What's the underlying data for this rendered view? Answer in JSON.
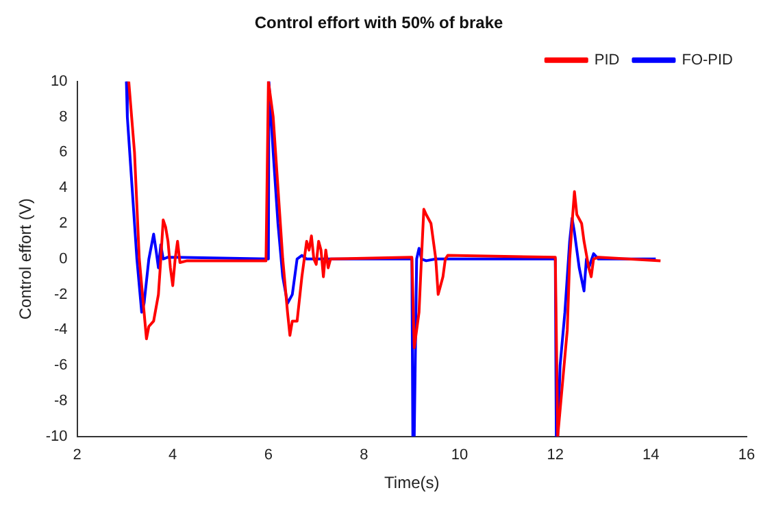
{
  "chart_data": {
    "type": "line",
    "title": "Control effort with 50% of brake",
    "xlabel": "Time(s)",
    "ylabel": "Control effort (V)",
    "xlim": [
      2,
      16
    ],
    "xticks": [
      2,
      4,
      6,
      8,
      10,
      12,
      14,
      16
    ],
    "ylim": [
      -10,
      10
    ],
    "yticks": [
      -10,
      -8,
      -6,
      -4,
      -2,
      0,
      2,
      4,
      6,
      8,
      10
    ],
    "grid": false,
    "legend": "top right",
    "marker": "none",
    "line_style": "solid",
    "series": [
      {
        "name": "PID",
        "color": "#ff0000",
        "x": [
          3.08,
          3.2,
          3.3,
          3.4,
          3.45,
          3.5,
          3.6,
          3.7,
          3.75,
          3.8,
          3.85,
          3.9,
          3.95,
          4.0,
          4.05,
          4.1,
          4.15,
          4.3,
          5.95,
          6.0,
          6.1,
          6.2,
          6.3,
          6.4,
          6.45,
          6.5,
          6.6,
          6.7,
          6.8,
          6.85,
          6.9,
          6.95,
          7.0,
          7.05,
          7.1,
          7.15,
          7.2,
          7.25,
          7.3,
          9.0,
          9.05,
          9.15,
          9.2,
          9.25,
          9.3,
          9.4,
          9.5,
          9.55,
          9.6,
          9.65,
          9.7,
          9.75,
          12.0,
          12.05,
          12.15,
          12.25,
          12.3,
          12.35,
          12.4,
          12.45,
          12.55,
          12.6,
          12.7,
          12.75,
          12.8,
          12.9,
          14.2
        ],
        "values": [
          10,
          6,
          0,
          -3,
          -4.5,
          -3.8,
          -3.5,
          -2,
          0,
          2.2,
          1.8,
          1,
          -0.5,
          -1.5,
          0,
          1,
          -0.2,
          -0.1,
          -0.1,
          10,
          8,
          4,
          0,
          -3,
          -4.3,
          -3.5,
          -3.5,
          -1,
          1,
          0.5,
          1.3,
          0,
          -0.3,
          1,
          0.5,
          -1,
          0.5,
          -0.5,
          0,
          0.1,
          -5,
          -3,
          0,
          2.8,
          2.5,
          2,
          0,
          -2,
          -1.5,
          -1,
          0,
          0.2,
          0.1,
          -10,
          -7,
          -4,
          0,
          2,
          3.8,
          2.5,
          2,
          1,
          -0.5,
          -1,
          0,
          0.1,
          -0.1
        ]
      },
      {
        "name": "FO-PID",
        "color": "#0000ff",
        "x": [
          3.03,
          3.05,
          3.15,
          3.25,
          3.35,
          3.4,
          3.5,
          3.6,
          3.65,
          3.7,
          3.75,
          3.8,
          3.9,
          6.0,
          6.01,
          6.1,
          6.2,
          6.3,
          6.4,
          6.5,
          6.6,
          6.7,
          6.8,
          9.0,
          9.02,
          9.05,
          9.1,
          9.15,
          9.2,
          9.3,
          9.5,
          12.0,
          12.02,
          12.05,
          12.1,
          12.2,
          12.3,
          12.35,
          12.4,
          12.5,
          12.6,
          12.65,
          12.7,
          12.8,
          12.9,
          14.1
        ],
        "values": [
          10,
          8,
          4,
          0,
          -3,
          -2.5,
          0,
          1.4,
          0.5,
          -0.5,
          0.8,
          0,
          0.1,
          0,
          10,
          6,
          2,
          -1,
          -2.5,
          -2,
          0,
          0.2,
          0,
          0,
          -10,
          -10,
          0,
          0.6,
          0,
          -0.1,
          0,
          0,
          -10,
          -10,
          -6,
          -3,
          1,
          2.3,
          1.5,
          -0.5,
          -1.8,
          0,
          -0.5,
          0.3,
          0,
          0
        ]
      }
    ]
  }
}
